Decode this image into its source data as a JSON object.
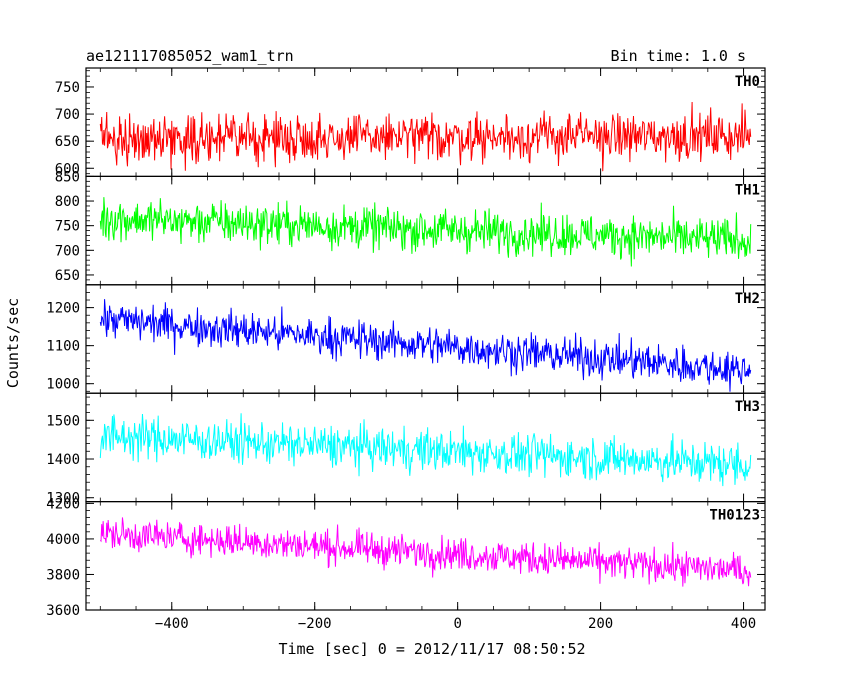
{
  "chart_data": {
    "type": "line",
    "title": "ae121117085052_wam1_trn",
    "subtitle": "Bin time: 1.0 s",
    "xlabel": "Time [sec] 0 = 2012/11/17 08:50:52",
    "ylabel": "Counts/sec",
    "xlim": [
      -520,
      430
    ],
    "x_ticks": [
      -400,
      -200,
      0,
      200,
      400
    ],
    "x_range": [
      -500,
      410
    ],
    "bin_time": 1.0,
    "grid": false,
    "series": [
      {
        "name": "TH0",
        "color": "#ff0000",
        "ylim": [
          585,
          785
        ],
        "y_ticks": [
          600,
          650,
          700,
          750
        ],
        "start_mean": 655,
        "end_mean": 660,
        "noise": 30
      },
      {
        "name": "TH1",
        "color": "#00ff00",
        "ylim": [
          630,
          850
        ],
        "y_ticks": [
          650,
          700,
          750,
          800,
          850
        ],
        "start_mean": 765,
        "end_mean": 720,
        "noise": 30
      },
      {
        "name": "TH2",
        "color": "#0000ff",
        "ylim": [
          975,
          1260
        ],
        "y_ticks": [
          1000,
          1100,
          1200
        ],
        "start_mean": 1170,
        "end_mean": 1035,
        "noise": 35
      },
      {
        "name": "TH3",
        "color": "#00ffff",
        "ylim": [
          1290,
          1570
        ],
        "y_ticks": [
          1300,
          1400,
          1500
        ],
        "start_mean": 1460,
        "end_mean": 1385,
        "noise": 38
      },
      {
        "name": "TH0123",
        "color": "#ff00ff",
        "ylim": [
          3600,
          4210
        ],
        "y_ticks": [
          3600,
          3800,
          4000,
          4200
        ],
        "start_mean": 4030,
        "end_mean": 3820,
        "noise": 65
      }
    ]
  }
}
